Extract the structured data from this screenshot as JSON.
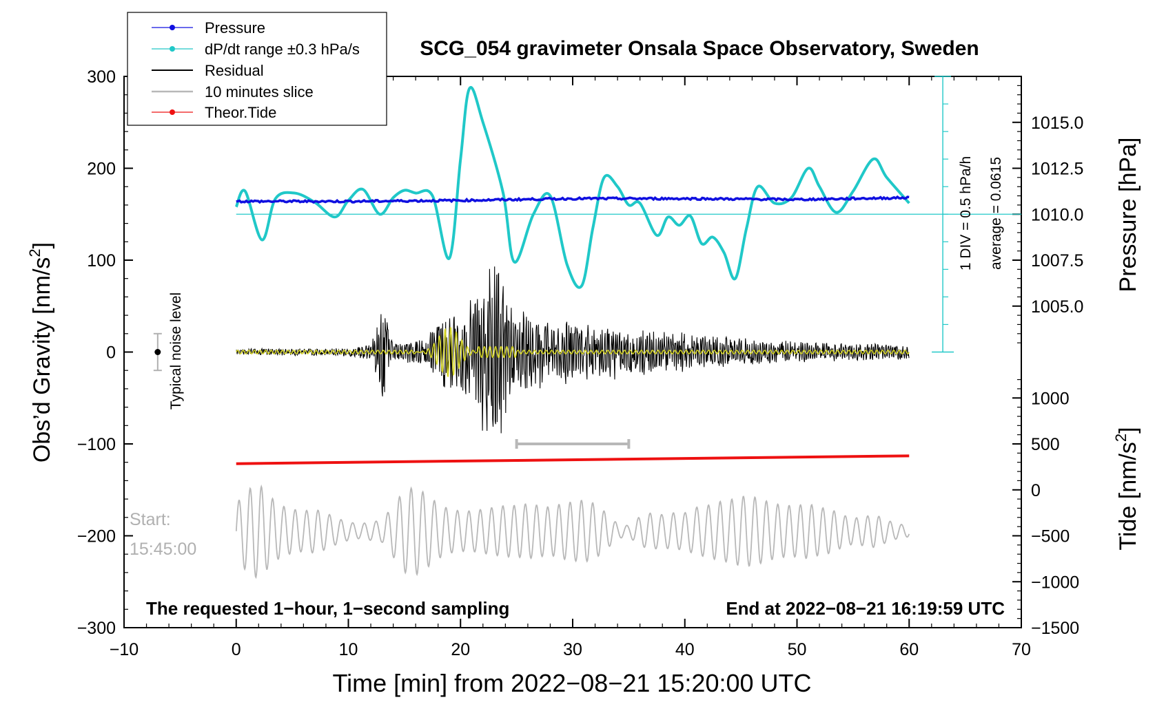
{
  "chart_data": {
    "type": "line",
    "title": "SCG_054 gravimeter Onsala Space Observatory, Sweden",
    "xlabel": "Time [min] from 2022−08−21 15:20:00 UTC",
    "ylabel_left": "Obs’d Gravity [nm/s²]",
    "ylabel_right_top": "Pressure [hPa]",
    "ylabel_right_bottom": "Tide [nm/s²]",
    "xlim": [
      -10,
      70
    ],
    "ylim": [
      -300,
      300
    ],
    "x_ticks": [
      "−10",
      "0",
      "10",
      "20",
      "30",
      "40",
      "50",
      "60",
      "70"
    ],
    "x_tick_values": [
      -10,
      0,
      10,
      20,
      30,
      40,
      50,
      60,
      70
    ],
    "y_ticks": [
      "−300",
      "−200",
      "−100",
      "0",
      "100",
      "200",
      "300"
    ],
    "y_tick_values": [
      -300,
      -200,
      -100,
      0,
      100,
      200,
      300
    ],
    "pressure_axis": {
      "ticks": [
        "1005.0",
        "1007.5",
        "1010.0",
        "1012.5",
        "1015.0"
      ],
      "values": [
        1005.0,
        1007.5,
        1010.0,
        1012.5,
        1015.0
      ],
      "gravity_at_1010": 150,
      "gravity_per_hpa": 20
    },
    "tide_axis": {
      "ticks": [
        "−1500",
        "−1000",
        "−500",
        "0",
        "500",
        "1000"
      ],
      "values": [
        -1500,
        -1000,
        -500,
        0,
        500,
        1000
      ]
    },
    "legend": {
      "placement": "top-left",
      "entries": [
        {
          "label": "Pressure",
          "color": "#1010e0",
          "marker": true
        },
        {
          "label": "dP/dt range ±0.3 hPa/s",
          "color": "#20c8c8",
          "marker": true
        },
        {
          "label": "Residual",
          "color": "#000000",
          "marker": false
        },
        {
          "label": "10 minutes slice",
          "color": "#b8b8b8",
          "marker": false
        },
        {
          "label": "Theor.Tide",
          "color": "#ee1111",
          "marker": true
        }
      ]
    },
    "annotations": {
      "noise_label": "Typical noise level",
      "noise_level": {
        "x": -7,
        "y": 0,
        "half_range": 20
      },
      "dpdt_scale": "1 DIV = 0.5 hPa/h",
      "dpdt_average": "average = 0.0615",
      "dpdt_axis_x": 63,
      "start_label": "Start:",
      "start_time": "15:45:00",
      "slice_bracket": [
        25,
        35
      ],
      "slice_bracket_y": -100,
      "footer_left": "The requested 1−hour, 1−second sampling",
      "footer_right": "End at 2022−08−21 16:19:59 UTC"
    },
    "series": [
      {
        "name": "Pressure",
        "color": "#1010e0",
        "x": [
          0,
          10,
          20,
          30,
          40,
          50,
          60
        ],
        "hPa": [
          1010.7,
          1010.7,
          1010.75,
          1010.85,
          1010.85,
          1010.8,
          1010.9
        ]
      },
      {
        "name": "dP/dt",
        "color": "#20c8c8",
        "zero_line": 150,
        "x": [
          0,
          0.8,
          2.3,
          3.5,
          5.2,
          7.0,
          8.8,
          10.0,
          11.3,
          12.8,
          14.0,
          15.0,
          16.0,
          17.5,
          19.0,
          20.0,
          20.8,
          22.0,
          23.8,
          24.8,
          26.5,
          28.0,
          29.5,
          30.8,
          31.8,
          32.8,
          34.0,
          35.0,
          36.0,
          37.5,
          38.5,
          39.5,
          40.5,
          41.5,
          42.5,
          43.5,
          44.5,
          45.5,
          46.5,
          48.0,
          49.5,
          51.0,
          52.0,
          53.5,
          55.0,
          56.8,
          58.0,
          60.0
        ],
        "y": [
          158,
          175,
          122,
          167,
          173,
          163,
          147,
          165,
          177,
          150,
          168,
          176,
          173,
          170,
          102,
          210,
          287,
          250,
          173,
          98,
          150,
          170,
          95,
          72,
          135,
          190,
          180,
          160,
          162,
          127,
          147,
          138,
          148,
          118,
          125,
          108,
          80,
          135,
          180,
          162,
          168,
          200,
          180,
          152,
          175,
          210,
          190,
          162
        ]
      },
      {
        "name": "Residual",
        "color": "#000000",
        "x": [
          0,
          2,
          4,
          6,
          8,
          10,
          12,
          13.1,
          14,
          15,
          16,
          17,
          18,
          19,
          20,
          21,
          22,
          22.8,
          23.5,
          24.2,
          25,
          26,
          27,
          28,
          29,
          30,
          31,
          32,
          33,
          34,
          35,
          36,
          38,
          40,
          42,
          44,
          46,
          48,
          50,
          52,
          54,
          56,
          58,
          60
        ],
        "amplitude": [
          3,
          4,
          4,
          4,
          4,
          5,
          9,
          55,
          10,
          12,
          14,
          16,
          40,
          45,
          50,
          60,
          90,
          110,
          110,
          55,
          48,
          45,
          40,
          38,
          36,
          34,
          34,
          32,
          30,
          30,
          29,
          27,
          24,
          22,
          19,
          17,
          15,
          13,
          12,
          11,
          10,
          10,
          9,
          8
        ]
      },
      {
        "name": "10 minutes slice",
        "color": "#b8b8b8",
        "offset": -195,
        "x": [
          0,
          1,
          2,
          3,
          4,
          5,
          6,
          7,
          8,
          9,
          10,
          11,
          12,
          13,
          14,
          15,
          16,
          17,
          18,
          19,
          20,
          21,
          22,
          23,
          24,
          25,
          26,
          27,
          28,
          29,
          30,
          31,
          32,
          33,
          34,
          35,
          36,
          37,
          38,
          39,
          40,
          41,
          42,
          43,
          44,
          45,
          46,
          47,
          48,
          49,
          50,
          51,
          52,
          53,
          54,
          55,
          56,
          57,
          58,
          59,
          60
        ],
        "amplitude": [
          30,
          45,
          52,
          38,
          28,
          24,
          22,
          24,
          20,
          14,
          10,
          8,
          10,
          12,
          28,
          45,
          48,
          40,
          30,
          24,
          22,
          22,
          24,
          26,
          28,
          28,
          30,
          28,
          26,
          30,
          32,
          34,
          30,
          20,
          8,
          6,
          16,
          20,
          18,
          20,
          20,
          26,
          28,
          32,
          34,
          38,
          38,
          34,
          30,
          28,
          28,
          30,
          26,
          24,
          18,
          14,
          16,
          18,
          12,
          8,
          6
        ]
      },
      {
        "name": "Theor.Tide",
        "color": "#ee1111",
        "x": [
          0,
          60
        ],
        "tide": [
          285,
          370
        ]
      }
    ]
  }
}
